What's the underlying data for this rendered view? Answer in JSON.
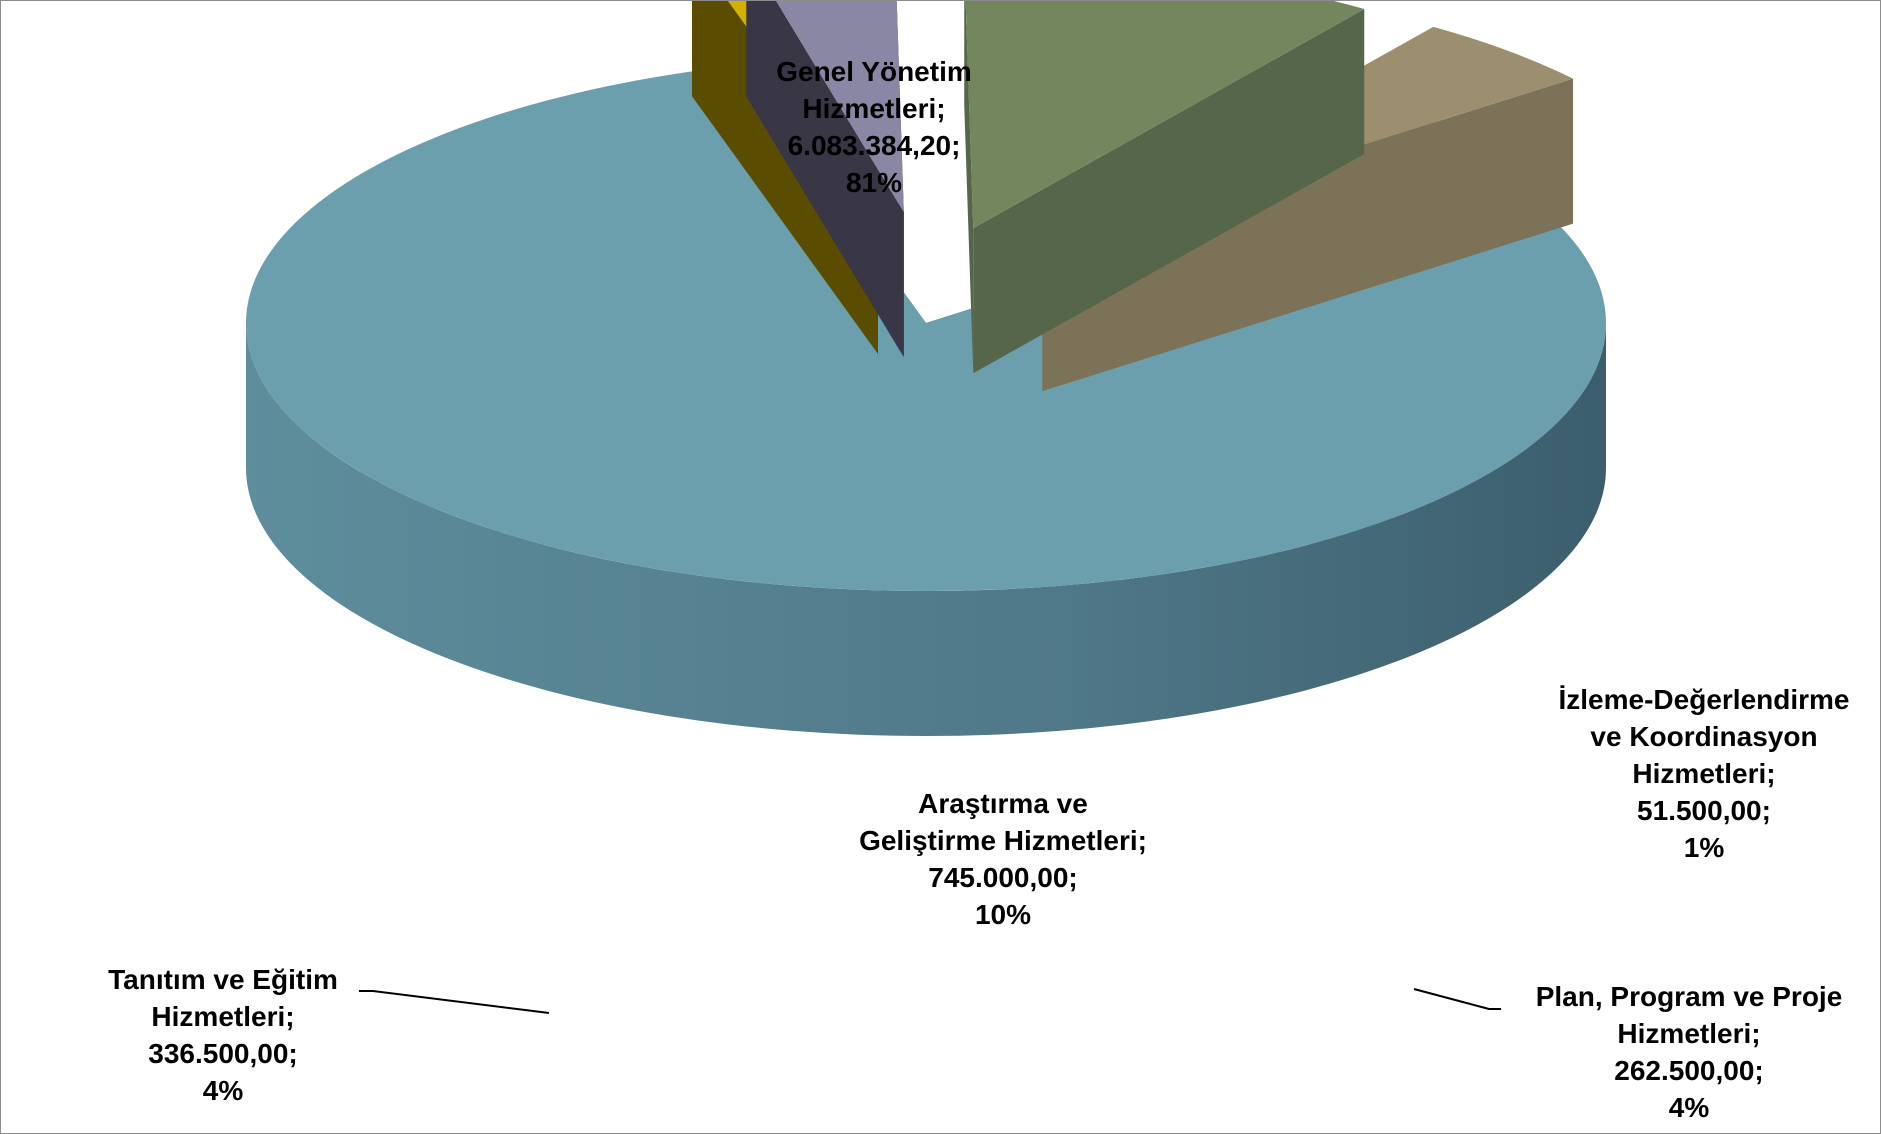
{
  "chart_data": {
    "type": "pie",
    "title": "",
    "style": "3d-exploded",
    "separator": ";",
    "slices": [
      {
        "name_lines": [
          "Genel Yönetim",
          "Hizmetleri;"
        ],
        "value_label": "6.083.384,20;",
        "percent_label": "81%",
        "value": 6083384.2,
        "color": "#6b9fae"
      },
      {
        "name_lines": [
          "İzleme-Değerlendirme",
          "ve Koordinasyon",
          "Hizmetleri;"
        ],
        "value_label": "51.500,00;",
        "percent_label": "1%",
        "value": 51500.0,
        "color": "#d4b000"
      },
      {
        "name_lines": [
          "Plan, Program ve Proje",
          "Hizmetleri;"
        ],
        "value_label": "262.500,00;",
        "percent_label": "4%",
        "value": 262500.0,
        "color": "#8a87a4"
      },
      {
        "name_lines": [
          "Araştırma ve",
          "Geliştirme Hizmetleri;"
        ],
        "value_label": "745.000,00;",
        "percent_label": "10%",
        "value": 745000.0,
        "color": "#74865e"
      },
      {
        "name_lines": [
          "Tanıtım ve Eğitim",
          "Hizmetleri;"
        ],
        "value_label": "336.500,00;",
        "percent_label": "4%",
        "value": 336500.0,
        "color": "#9b8f70"
      }
    ]
  }
}
